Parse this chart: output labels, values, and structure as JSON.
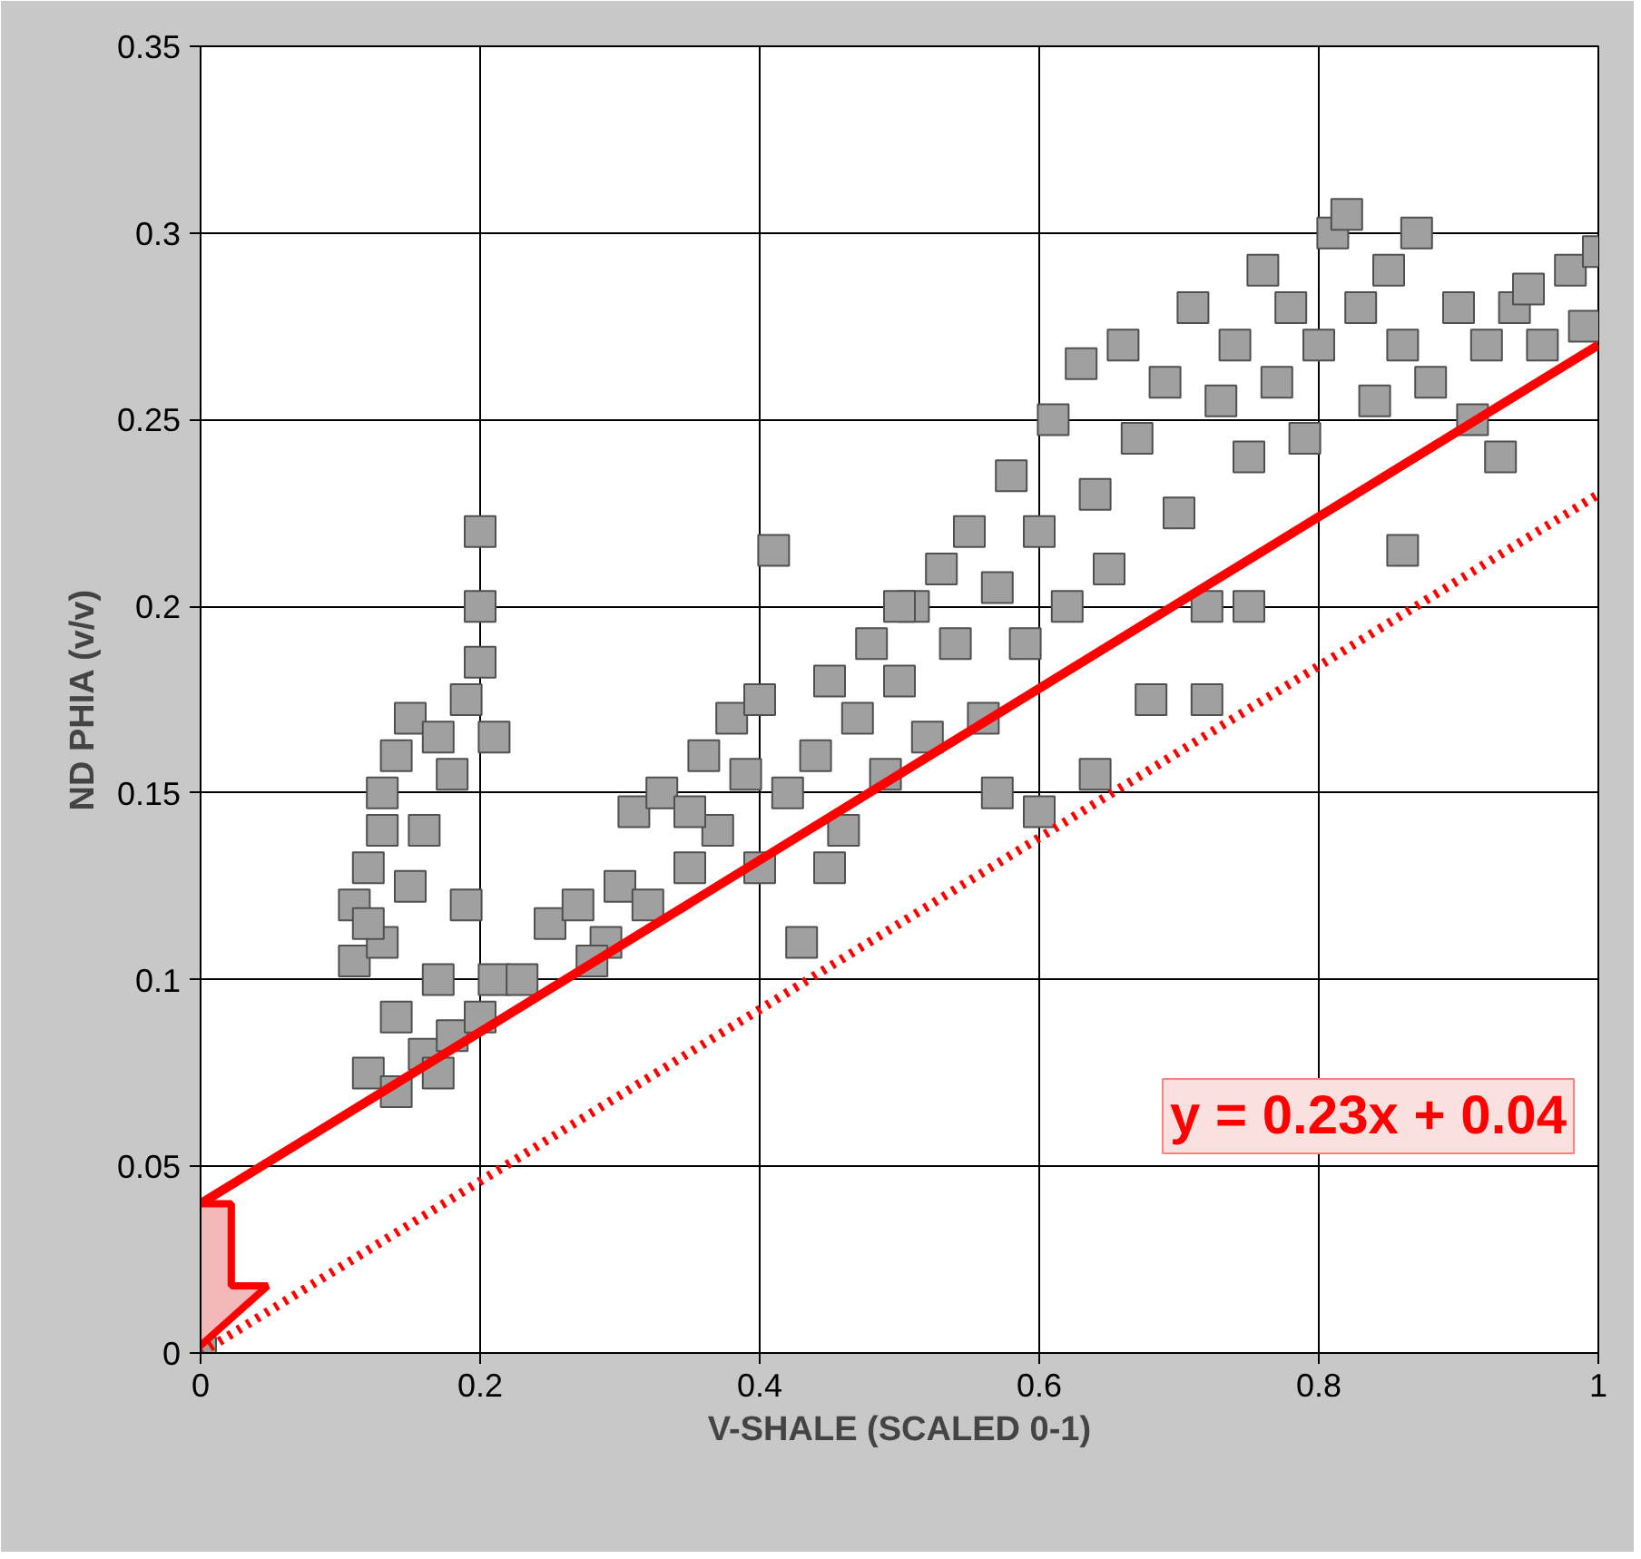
{
  "chart_data": {
    "type": "scatter",
    "xlabel": "V-SHALE (SCALED 0-1)",
    "ylabel": "ND PHIA (v/v)",
    "xlim": [
      0,
      1
    ],
    "ylim": [
      0,
      0.35
    ],
    "xticks": [
      0,
      0.2,
      0.4,
      0.6,
      0.8,
      1
    ],
    "yticks": [
      0,
      0.05,
      0.1,
      0.15,
      0.2,
      0.25,
      0.3,
      0.35
    ],
    "grid": true,
    "annotations": [
      "y = 0.23x + 0.04"
    ],
    "series": [
      {
        "color": "#a0a0a0",
        "marker": "square",
        "x": [
          0.11,
          0.11,
          0.12,
          0.12,
          0.13,
          0.13,
          0.14,
          0.14,
          0.15,
          0.15,
          0.16,
          0.16,
          0.17,
          0.17,
          0.18,
          0.18,
          0.19,
          0.19,
          0.2,
          0.2,
          0.2,
          0.21,
          0.21,
          0.2,
          0.14,
          0.17,
          0.13,
          0.12,
          0.23,
          0.25,
          0.27,
          0.29,
          0.3,
          0.31,
          0.32,
          0.33,
          0.35,
          0.36,
          0.37,
          0.38,
          0.39,
          0.4,
          0.4,
          0.41,
          0.42,
          0.43,
          0.44,
          0.45,
          0.46,
          0.47,
          0.48,
          0.49,
          0.5,
          0.51,
          0.52,
          0.53,
          0.54,
          0.55,
          0.56,
          0.57,
          0.58,
          0.59,
          0.6,
          0.6,
          0.61,
          0.62,
          0.63,
          0.64,
          0.65,
          0.66,
          0.67,
          0.68,
          0.69,
          0.7,
          0.71,
          0.72,
          0.72,
          0.73,
          0.74,
          0.75,
          0.76,
          0.77,
          0.78,
          0.79,
          0.8,
          0.81,
          0.82,
          0.83,
          0.84,
          0.85,
          0.86,
          0.87,
          0.88,
          0.9,
          0.91,
          0.92,
          0.94,
          0.95,
          0.96,
          0.98,
          0.99,
          1.0,
          0.86,
          0.93,
          0.75,
          0.64,
          0.57,
          0.5,
          0.45,
          0.35,
          0.28,
          0.0
        ],
        "values": [
          0.12,
          0.105,
          0.075,
          0.13,
          0.15,
          0.11,
          0.16,
          0.09,
          0.17,
          0.125,
          0.08,
          0.14,
          0.165,
          0.1,
          0.155,
          0.085,
          0.175,
          0.12,
          0.22,
          0.2,
          0.185,
          0.165,
          0.1,
          0.09,
          0.07,
          0.075,
          0.14,
          0.115,
          0.1,
          0.115,
          0.12,
          0.11,
          0.125,
          0.145,
          0.12,
          0.15,
          0.13,
          0.16,
          0.14,
          0.17,
          0.155,
          0.13,
          0.175,
          0.215,
          0.15,
          0.11,
          0.16,
          0.18,
          0.14,
          0.17,
          0.19,
          0.155,
          0.18,
          0.2,
          0.165,
          0.21,
          0.19,
          0.22,
          0.17,
          0.205,
          0.235,
          0.19,
          0.22,
          0.145,
          0.25,
          0.2,
          0.265,
          0.23,
          0.21,
          0.27,
          0.245,
          0.175,
          0.26,
          0.225,
          0.28,
          0.175,
          0.2,
          0.255,
          0.27,
          0.24,
          0.29,
          0.26,
          0.28,
          0.245,
          0.27,
          0.3,
          0.305,
          0.28,
          0.255,
          0.29,
          0.27,
          0.3,
          0.26,
          0.28,
          0.25,
          0.27,
          0.28,
          0.285,
          0.27,
          0.29,
          0.275,
          0.295,
          0.215,
          0.24,
          0.2,
          0.155,
          0.15,
          0.2,
          0.13,
          0.145,
          0.105,
          0.0
        ]
      },
      {
        "type": "line",
        "color": "#ff0000",
        "line_style": "solid",
        "x": [
          0,
          1
        ],
        "values": [
          0.04,
          0.27
        ]
      },
      {
        "type": "line",
        "color": "#ff0000",
        "line_style": "dotted",
        "x": [
          0,
          1
        ],
        "values": [
          0,
          0.23
        ]
      }
    ]
  }
}
